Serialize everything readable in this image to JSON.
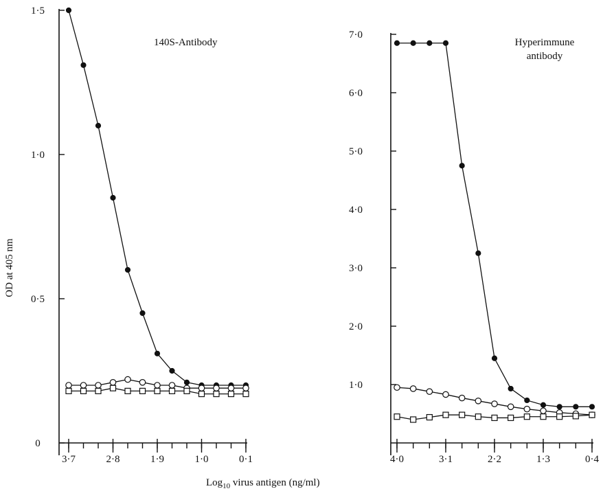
{
  "figure": {
    "ylabel": "OD at 405 nm",
    "xlabel_main": "Log",
    "xlabel_sub": "10",
    "xlabel_rest": " virus  antigen (ng/ml)"
  },
  "chart_data": [
    {
      "type": "line",
      "title": "140S-Antibody",
      "xlabel": "Log10 virus antigen (ng/ml)",
      "ylabel": "OD at 405 nm",
      "x_reversed": true,
      "xlim": [
        3.7,
        0.1
      ],
      "ylim": [
        0,
        1.5
      ],
      "xticks": [
        3.7,
        2.8,
        1.9,
        1.0,
        0.1
      ],
      "xtick_labels": [
        "3·7",
        "2·8",
        "1·9",
        "1·0",
        "0·1"
      ],
      "yticks": [
        0,
        0.5,
        1.0,
        1.5
      ],
      "ytick_labels": [
        "0",
        "0·5",
        "1·0",
        "1·5"
      ],
      "grid": false,
      "series": [
        {
          "marker": "filled-circle",
          "x": [
            3.7,
            3.4,
            3.1,
            2.8,
            2.5,
            2.2,
            1.9,
            1.6,
            1.3,
            1.0,
            0.7,
            0.4,
            0.1
          ],
          "y": [
            1.5,
            1.31,
            1.1,
            0.85,
            0.6,
            0.45,
            0.31,
            0.25,
            0.21,
            0.2,
            0.2,
            0.2,
            0.2
          ]
        },
        {
          "marker": "open-circle",
          "x": [
            3.7,
            3.4,
            3.1,
            2.8,
            2.5,
            2.2,
            1.9,
            1.6,
            1.3,
            1.0,
            0.7,
            0.4,
            0.1
          ],
          "y": [
            0.2,
            0.2,
            0.2,
            0.21,
            0.22,
            0.21,
            0.2,
            0.2,
            0.19,
            0.19,
            0.19,
            0.19,
            0.19
          ]
        },
        {
          "marker": "open-square",
          "x": [
            3.7,
            3.4,
            3.1,
            2.8,
            2.5,
            2.2,
            1.9,
            1.6,
            1.3,
            1.0,
            0.7,
            0.4,
            0.1
          ],
          "y": [
            0.18,
            0.18,
            0.18,
            0.19,
            0.18,
            0.18,
            0.18,
            0.18,
            0.18,
            0.17,
            0.17,
            0.17,
            0.17
          ]
        }
      ]
    },
    {
      "type": "line",
      "title": "Hyperimmune\nantibody",
      "xlabel": "Log10 virus antigen (ng/ml)",
      "ylabel": "",
      "x_reversed": true,
      "xlim": [
        4.0,
        0.4
      ],
      "ylim": [
        0,
        7.0
      ],
      "xticks": [
        4.0,
        3.1,
        2.2,
        1.3,
        0.4
      ],
      "xtick_labels": [
        "4·0",
        "3·1",
        "2·2",
        "1·3",
        "0·4"
      ],
      "yticks": [
        1.0,
        2.0,
        3.0,
        4.0,
        5.0,
        6.0,
        7.0
      ],
      "ytick_labels": [
        "1·0",
        "2·0",
        "3·0",
        "4·0",
        "5·0",
        "6·0",
        "7·0"
      ],
      "grid": false,
      "series": [
        {
          "marker": "filled-circle",
          "x": [
            4.0,
            3.7,
            3.4,
            3.1,
            2.8,
            2.5,
            2.2,
            1.9,
            1.6,
            1.3,
            1.0,
            0.7,
            0.4
          ],
          "y": [
            6.85,
            6.85,
            6.85,
            6.85,
            4.75,
            3.25,
            1.45,
            0.93,
            0.73,
            0.65,
            0.62,
            0.62,
            0.62
          ]
        },
        {
          "marker": "open-circle",
          "x": [
            4.0,
            3.7,
            3.4,
            3.1,
            2.8,
            2.5,
            2.2,
            1.9,
            1.6,
            1.3,
            1.0,
            0.7,
            0.4
          ],
          "y": [
            0.95,
            0.93,
            0.88,
            0.83,
            0.77,
            0.72,
            0.67,
            0.62,
            0.58,
            0.55,
            0.52,
            0.5,
            0.48
          ]
        },
        {
          "marker": "open-square",
          "x": [
            4.0,
            3.7,
            3.4,
            3.1,
            2.8,
            2.5,
            2.2,
            1.9,
            1.6,
            1.3,
            1.0,
            0.7,
            0.4
          ],
          "y": [
            0.45,
            0.4,
            0.44,
            0.48,
            0.48,
            0.45,
            0.43,
            0.43,
            0.45,
            0.45,
            0.45,
            0.46,
            0.48
          ]
        }
      ]
    }
  ]
}
